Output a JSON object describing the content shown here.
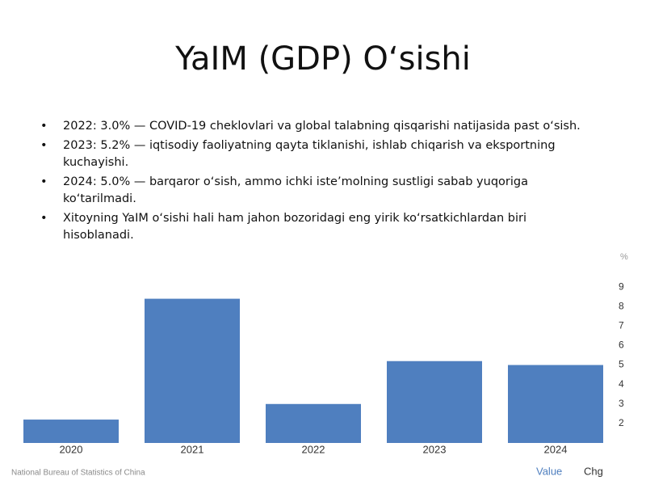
{
  "slide": {
    "title": "YaIM (GDP) O‘sishi",
    "bullets": [
      "2022: 3.0% — COVID-19 cheklovlari va global talabning qisqarishi natijasida past o‘sish.",
      "2023: 5.2% — iqtisodiy faoliyatning qayta tiklanishi, ishlab chiqarish va eksportning kuchayishi.",
      "2024: 5.0% — barqaror o‘sish, ammo ichki iste’molning sustligi sabab yuqoriga ko‘tarilmadi.",
      "Xitoyning YaIM o‘sishi hali ham jahon bozoridagi eng yirik ko‘rsatkichlardan biri hisoblanadi."
    ]
  },
  "chart_data": {
    "type": "bar",
    "source": "National Bureau of Statistics of China",
    "unit": "%",
    "categories": [
      "2020",
      "2021",
      "2022",
      "2023",
      "2024"
    ],
    "series": [
      {
        "name": "Value",
        "color": "#4f7fbf",
        "values": [
          2.2,
          8.4,
          3.0,
          5.2,
          5.0
        ]
      },
      {
        "name": "Chg",
        "color": "#333333",
        "values": [
          null,
          null,
          null,
          null,
          null
        ]
      }
    ],
    "ylim": [
      1,
      10
    ],
    "yticks": [
      2,
      3,
      4,
      5,
      6,
      7,
      8,
      9
    ],
    "grid": false
  }
}
